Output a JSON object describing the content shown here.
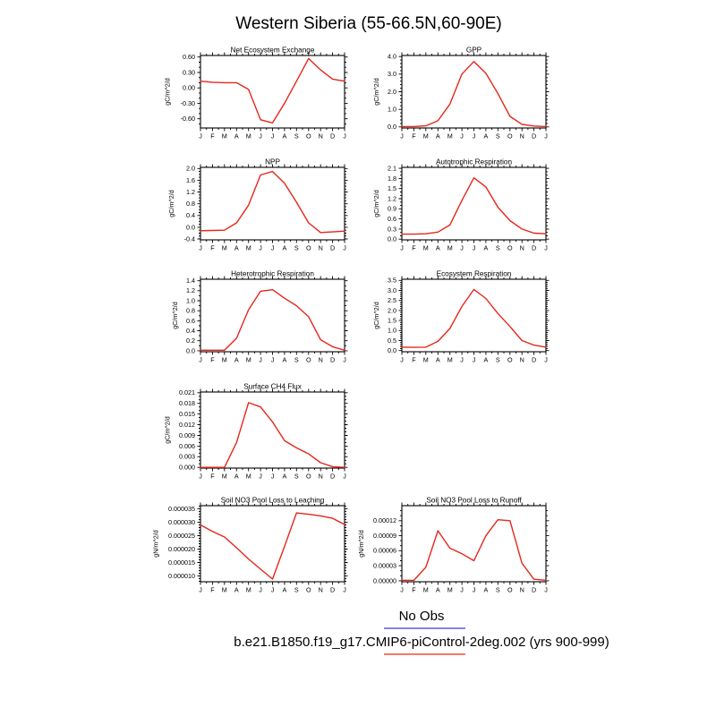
{
  "page_title": "Western Siberia (55-66.5N,60-90E)",
  "months": [
    "J",
    "F",
    "M",
    "A",
    "M",
    "J",
    "J",
    "A",
    "S",
    "O",
    "N",
    "D",
    "J"
  ],
  "line_color": "#e5261b",
  "axis_color": "#000000",
  "legend": {
    "no_obs_label": "No Obs",
    "no_obs_color": "#8383f7",
    "model_label": "b.e21.B1850.f19_g17.CMIP6-piControl-2deg.002 (yrs 900-999)",
    "model_color": "#f5786a"
  },
  "chart_data": [
    {
      "type": "line",
      "title": "Net Ecosystem Exchange",
      "ylabel": "gC/m^2/d",
      "categories": [
        "J",
        "F",
        "M",
        "A",
        "M",
        "J",
        "J",
        "A",
        "S",
        "O",
        "N",
        "D",
        "J"
      ],
      "values": [
        0.13,
        0.11,
        0.1,
        0.1,
        -0.03,
        -0.62,
        -0.68,
        -0.3,
        0.13,
        0.57,
        0.35,
        0.17,
        0.13
      ],
      "yticks": [
        -0.6,
        -0.3,
        0.0,
        0.3,
        0.6
      ],
      "ytick_labels": [
        "-0.60",
        "-0.30",
        "0.00",
        "0.30",
        "0.60"
      ],
      "ylim": [
        -0.78,
        0.63
      ],
      "yminor": 2,
      "grid": false,
      "layout": {
        "row": 0,
        "col": 0
      }
    },
    {
      "type": "line",
      "title": "GPP",
      "ylabel": "gC/m^2/d",
      "categories": [
        "J",
        "F",
        "M",
        "A",
        "M",
        "J",
        "J",
        "A",
        "S",
        "O",
        "N",
        "D",
        "J"
      ],
      "values": [
        0.02,
        0.02,
        0.06,
        0.35,
        1.3,
        3.0,
        3.72,
        3.05,
        1.9,
        0.6,
        0.15,
        0.05,
        0.02
      ],
      "yticks": [
        0.0,
        1.0,
        2.0,
        3.0,
        4.0
      ],
      "ytick_labels": [
        "0.0",
        "1.0",
        "2.0",
        "3.0",
        "4.0"
      ],
      "ylim": [
        -0.06,
        4.06
      ],
      "yminor": 4,
      "grid": false,
      "layout": {
        "row": 0,
        "col": 1
      }
    },
    {
      "type": "line",
      "title": "NPP",
      "ylabel": "gC/m^2/d",
      "categories": [
        "J",
        "F",
        "M",
        "A",
        "M",
        "J",
        "J",
        "A",
        "S",
        "O",
        "N",
        "D",
        "J"
      ],
      "values": [
        -0.12,
        -0.11,
        -0.1,
        0.15,
        0.75,
        1.78,
        1.9,
        1.5,
        0.85,
        0.15,
        -0.18,
        -0.16,
        -0.13
      ],
      "yticks": [
        -0.4,
        0.0,
        0.4,
        0.8,
        1.2,
        1.6,
        2.0
      ],
      "ytick_labels": [
        "-0.4",
        "0.0",
        "0.4",
        "0.8",
        "1.2",
        "1.6",
        "2.0"
      ],
      "ylim": [
        -0.43,
        2.04
      ],
      "yminor": 3,
      "grid": false,
      "layout": {
        "row": 1,
        "col": 0
      }
    },
    {
      "type": "line",
      "title": "Autotrophic Respiration",
      "ylabel": "gC/m^2/d",
      "categories": [
        "J",
        "F",
        "M",
        "A",
        "M",
        "J",
        "J",
        "A",
        "S",
        "O",
        "N",
        "D",
        "J"
      ],
      "values": [
        0.15,
        0.15,
        0.16,
        0.21,
        0.42,
        1.15,
        1.82,
        1.55,
        0.95,
        0.55,
        0.3,
        0.18,
        0.16
      ],
      "yticks": [
        0.0,
        0.3,
        0.6,
        0.9,
        1.2,
        1.5,
        1.8,
        2.1
      ],
      "ytick_labels": [
        "0.0",
        "0.3",
        "0.6",
        "0.9",
        "1.2",
        "1.5",
        "1.8",
        "2.1"
      ],
      "ylim": [
        -0.02,
        2.13
      ],
      "yminor": 2,
      "grid": false,
      "layout": {
        "row": 1,
        "col": 1
      }
    },
    {
      "type": "line",
      "title": "Heterotrophic Respiration",
      "ylabel": "gC/m^2/d",
      "categories": [
        "J",
        "F",
        "M",
        "A",
        "M",
        "J",
        "J",
        "A",
        "S",
        "O",
        "N",
        "D",
        "J"
      ],
      "values": [
        0.01,
        0.01,
        0.01,
        0.25,
        0.82,
        1.19,
        1.22,
        1.05,
        0.9,
        0.68,
        0.22,
        0.08,
        0.01
      ],
      "yticks": [
        0.0,
        0.2,
        0.4,
        0.6,
        0.8,
        1.0,
        1.2,
        1.4
      ],
      "ytick_labels": [
        "0.0",
        "0.2",
        "0.4",
        "0.6",
        "0.8",
        "1.0",
        "1.2",
        "1.4"
      ],
      "ylim": [
        -0.02,
        1.43
      ],
      "yminor": 1,
      "grid": false,
      "layout": {
        "row": 2,
        "col": 0
      }
    },
    {
      "type": "line",
      "title": "Ecosystem Respiration",
      "ylabel": "gC/m^2/d",
      "categories": [
        "J",
        "F",
        "M",
        "A",
        "M",
        "J",
        "J",
        "A",
        "S",
        "O",
        "N",
        "D",
        "J"
      ],
      "values": [
        0.17,
        0.16,
        0.17,
        0.46,
        1.1,
        2.2,
        3.05,
        2.6,
        1.85,
        1.2,
        0.5,
        0.27,
        0.17
      ],
      "yticks": [
        0.0,
        0.5,
        1.0,
        1.5,
        2.0,
        2.5,
        3.0,
        3.5
      ],
      "ytick_labels": [
        "0.0",
        "0.5",
        "1.0",
        "1.5",
        "2.0",
        "2.5",
        "3.0",
        "3.5"
      ],
      "ylim": [
        -0.06,
        3.56
      ],
      "yminor": 4,
      "grid": false,
      "layout": {
        "row": 2,
        "col": 1
      }
    },
    {
      "type": "line",
      "title": "Surface CH4 Flux",
      "ylabel": "gC/m^2/d",
      "categories": [
        "J",
        "F",
        "M",
        "A",
        "M",
        "J",
        "J",
        "A",
        "S",
        "O",
        "N",
        "D",
        "J"
      ],
      "values": [
        0.0,
        0.0,
        0.0,
        0.007,
        0.0182,
        0.017,
        0.0128,
        0.0075,
        0.0055,
        0.0038,
        0.0013,
        0.0002,
        0.0
      ],
      "yticks": [
        0.0,
        0.003,
        0.006,
        0.009,
        0.012,
        0.015,
        0.018,
        0.021
      ],
      "ytick_labels": [
        "0.000",
        "0.003",
        "0.006",
        "0.009",
        "0.012",
        "0.015",
        "0.018",
        "0.021"
      ],
      "ylim": [
        -0.0002,
        0.0212
      ],
      "yminor": 2,
      "grid": false,
      "layout": {
        "row": 3,
        "col": 0
      }
    },
    {
      "type": "line",
      "title": "Soil NO3 Pool Loss to Leaching",
      "ylabel": "gN/m^2/d",
      "categories": [
        "J",
        "F",
        "M",
        "A",
        "M",
        "J",
        "J",
        "A",
        "S",
        "O",
        "N",
        "D",
        "J"
      ],
      "values": [
        2.9e-05,
        2.66e-05,
        2.45e-05,
        2.05e-05,
        1.63e-05,
        1.25e-05,
        8.8e-06,
        2.1e-05,
        3.35e-05,
        3.3e-05,
        3.24e-05,
        3.15e-05,
        2.92e-05
      ],
      "yticks": [
        1e-05,
        1.5e-05,
        2e-05,
        2.5e-05,
        3e-05,
        3.5e-05
      ],
      "ytick_labels": [
        "0.000010",
        "0.000015",
        "0.000020",
        "0.000025",
        "0.000030",
        "0.000035"
      ],
      "ylim": [
        7.8e-06,
        3.62e-05
      ],
      "yminor": 4,
      "grid": false,
      "layout": {
        "row": 4,
        "col": 0
      }
    },
    {
      "type": "line",
      "title": "Soil NO3 Pool Loss to Runoff",
      "ylabel": "gN/m^2/d",
      "categories": [
        "J",
        "F",
        "M",
        "A",
        "M",
        "J",
        "J",
        "A",
        "S",
        "O",
        "N",
        "D",
        "J"
      ],
      "values": [
        1e-06,
        8e-07,
        2.7e-05,
        0.0001,
        6.5e-05,
        5.4e-05,
        4e-05,
        9e-05,
        0.000122,
        0.00012,
        3.5e-05,
        3e-06,
        1e-06
      ],
      "yticks": [
        0.0,
        3e-05,
        6e-05,
        9e-05,
        0.00012
      ],
      "ytick_labels": [
        "0.00000",
        "0.00003",
        "0.00006",
        "0.00009",
        "0.00012"
      ],
      "ylim": [
        -2e-06,
        0.00015
      ],
      "yminor": 2,
      "grid": false,
      "layout": {
        "row": 4,
        "col": 1
      }
    }
  ]
}
